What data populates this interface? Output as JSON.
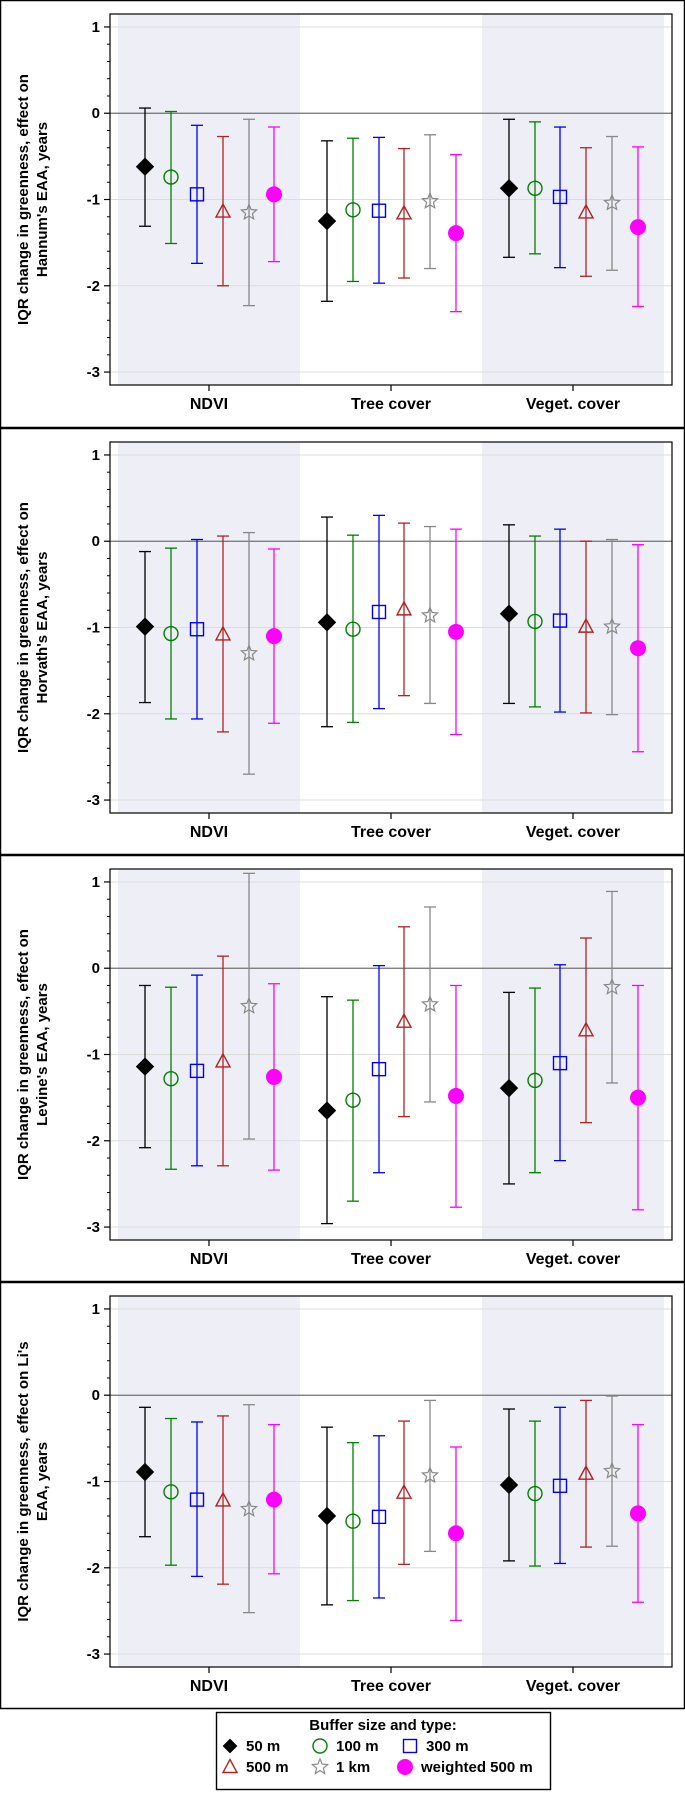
{
  "chart_data": [
    {
      "type": "errorbar",
      "title": "",
      "ylabel_lines": [
        "IQR change in greenness, effect on",
        "Hannum's EAA, years"
      ],
      "xlabel": "",
      "categories": [
        "NDVI",
        "Tree cover",
        "Veget. cover"
      ],
      "ylim": [
        -3.15,
        1.15
      ],
      "yticks": [
        1,
        0,
        -1,
        -2,
        -3
      ],
      "series": [
        {
          "name": "50 m",
          "points": [
            {
              "est": -0.62,
              "lo": -1.31,
              "hi": 0.06
            },
            {
              "est": -1.25,
              "lo": -2.18,
              "hi": -0.32
            },
            {
              "est": -0.87,
              "lo": -1.67,
              "hi": -0.07
            }
          ]
        },
        {
          "name": "100 m",
          "points": [
            {
              "est": -0.74,
              "lo": -1.51,
              "hi": 0.02
            },
            {
              "est": -1.12,
              "lo": -1.95,
              "hi": -0.29
            },
            {
              "est": -0.87,
              "lo": -1.63,
              "hi": -0.1
            }
          ]
        },
        {
          "name": "300 m",
          "points": [
            {
              "est": -0.94,
              "lo": -1.74,
              "hi": -0.14
            },
            {
              "est": -1.13,
              "lo": -1.97,
              "hi": -0.28
            },
            {
              "est": -0.97,
              "lo": -1.79,
              "hi": -0.16
            }
          ]
        },
        {
          "name": "500 m",
          "points": [
            {
              "est": -1.14,
              "lo": -2.0,
              "hi": -0.27
            },
            {
              "est": -1.16,
              "lo": -1.91,
              "hi": -0.41
            },
            {
              "est": -1.15,
              "lo": -1.89,
              "hi": -0.4
            }
          ]
        },
        {
          "name": "1 km",
          "points": [
            {
              "est": -1.15,
              "lo": -2.23,
              "hi": -0.07
            },
            {
              "est": -1.02,
              "lo": -1.8,
              "hi": -0.25
            },
            {
              "est": -1.04,
              "lo": -1.82,
              "hi": -0.27
            }
          ]
        },
        {
          "name": "weighted 500 m",
          "points": [
            {
              "est": -0.94,
              "lo": -1.72,
              "hi": -0.16
            },
            {
              "est": -1.39,
              "lo": -2.3,
              "hi": -0.48
            },
            {
              "est": -1.32,
              "lo": -2.24,
              "hi": -0.39
            }
          ]
        }
      ]
    },
    {
      "type": "errorbar",
      "title": "",
      "ylabel_lines": [
        "IQR change in greenness, effect on",
        "Horvath's EAA, years"
      ],
      "xlabel": "",
      "categories": [
        "NDVI",
        "Tree cover",
        "Veget. cover"
      ],
      "ylim": [
        -3.15,
        1.15
      ],
      "yticks": [
        1,
        0,
        -1,
        -2,
        -3
      ],
      "series": [
        {
          "name": "50 m",
          "points": [
            {
              "est": -0.99,
              "lo": -1.87,
              "hi": -0.12
            },
            {
              "est": -0.94,
              "lo": -2.15,
              "hi": 0.28
            },
            {
              "est": -0.84,
              "lo": -1.88,
              "hi": 0.19
            }
          ]
        },
        {
          "name": "100 m",
          "points": [
            {
              "est": -1.07,
              "lo": -2.06,
              "hi": -0.08
            },
            {
              "est": -1.02,
              "lo": -2.1,
              "hi": 0.07
            },
            {
              "est": -0.93,
              "lo": -1.92,
              "hi": 0.06
            }
          ]
        },
        {
          "name": "300 m",
          "points": [
            {
              "est": -1.02,
              "lo": -2.06,
              "hi": 0.02
            },
            {
              "est": -0.82,
              "lo": -1.94,
              "hi": 0.3
            },
            {
              "est": -0.92,
              "lo": -1.98,
              "hi": 0.14
            }
          ]
        },
        {
          "name": "500 m",
          "points": [
            {
              "est": -1.08,
              "lo": -2.21,
              "hi": 0.06
            },
            {
              "est": -0.79,
              "lo": -1.79,
              "hi": 0.21
            },
            {
              "est": -0.99,
              "lo": -1.99,
              "hi": 0.0
            }
          ]
        },
        {
          "name": "1 km",
          "points": [
            {
              "est": -1.3,
              "lo": -2.7,
              "hi": 0.1
            },
            {
              "est": -0.86,
              "lo": -1.88,
              "hi": 0.17
            },
            {
              "est": -0.99,
              "lo": -2.01,
              "hi": 0.02
            }
          ]
        },
        {
          "name": "weighted 500 m",
          "points": [
            {
              "est": -1.1,
              "lo": -2.11,
              "hi": -0.09
            },
            {
              "est": -1.05,
              "lo": -2.24,
              "hi": 0.14
            },
            {
              "est": -1.24,
              "lo": -2.44,
              "hi": -0.04
            }
          ]
        }
      ]
    },
    {
      "type": "errorbar",
      "title": "",
      "ylabel_lines": [
        "IQR change in greenness, effect on",
        "Levine's EAA, years"
      ],
      "xlabel": "",
      "categories": [
        "NDVI",
        "Tree cover",
        "Veget. cover"
      ],
      "ylim": [
        -3.15,
        1.15
      ],
      "yticks": [
        1,
        0,
        -1,
        -2,
        -3
      ],
      "series": [
        {
          "name": "50 m",
          "points": [
            {
              "est": -1.14,
              "lo": -2.08,
              "hi": -0.2
            },
            {
              "est": -1.65,
              "lo": -2.96,
              "hi": -0.33
            },
            {
              "est": -1.39,
              "lo": -2.5,
              "hi": -0.28
            }
          ]
        },
        {
          "name": "100 m",
          "points": [
            {
              "est": -1.28,
              "lo": -2.33,
              "hi": -0.22
            },
            {
              "est": -1.53,
              "lo": -2.7,
              "hi": -0.37
            },
            {
              "est": -1.3,
              "lo": -2.37,
              "hi": -0.23
            }
          ]
        },
        {
          "name": "300 m",
          "points": [
            {
              "est": -1.19,
              "lo": -2.29,
              "hi": -0.08
            },
            {
              "est": -1.17,
              "lo": -2.37,
              "hi": 0.03
            },
            {
              "est": -1.1,
              "lo": -2.23,
              "hi": 0.04
            }
          ]
        },
        {
          "name": "500 m",
          "points": [
            {
              "est": -1.08,
              "lo": -2.29,
              "hi": 0.14
            },
            {
              "est": -0.62,
              "lo": -1.72,
              "hi": 0.48
            },
            {
              "est": -0.72,
              "lo": -1.79,
              "hi": 0.35
            }
          ]
        },
        {
          "name": "1 km",
          "points": [
            {
              "est": -0.44,
              "lo": -1.98,
              "hi": 1.1
            },
            {
              "est": -0.42,
              "lo": -1.55,
              "hi": 0.71
            },
            {
              "est": -0.22,
              "lo": -1.33,
              "hi": 0.89
            }
          ]
        },
        {
          "name": "weighted 500 m",
          "points": [
            {
              "est": -1.26,
              "lo": -2.34,
              "hi": -0.18
            },
            {
              "est": -1.48,
              "lo": -2.77,
              "hi": -0.2
            },
            {
              "est": -1.5,
              "lo": -2.8,
              "hi": -0.2
            }
          ]
        }
      ]
    },
    {
      "type": "errorbar",
      "title": "",
      "ylabel_lines": [
        "IQR change in greenness, effect on Li's",
        "EAA, years"
      ],
      "xlabel": "",
      "categories": [
        "NDVI",
        "Tree cover",
        "Veget. cover"
      ],
      "ylim": [
        -3.15,
        1.15
      ],
      "yticks": [
        1,
        0,
        -1,
        -2,
        -3
      ],
      "series": [
        {
          "name": "50 m",
          "points": [
            {
              "est": -0.89,
              "lo": -1.64,
              "hi": -0.14
            },
            {
              "est": -1.4,
              "lo": -2.43,
              "hi": -0.37
            },
            {
              "est": -1.04,
              "lo": -1.92,
              "hi": -0.16
            }
          ]
        },
        {
          "name": "100 m",
          "points": [
            {
              "est": -1.12,
              "lo": -1.97,
              "hi": -0.27
            },
            {
              "est": -1.46,
              "lo": -2.38,
              "hi": -0.55
            },
            {
              "est": -1.14,
              "lo": -1.98,
              "hi": -0.3
            }
          ]
        },
        {
          "name": "300 m",
          "points": [
            {
              "est": -1.21,
              "lo": -2.1,
              "hi": -0.31
            },
            {
              "est": -1.41,
              "lo": -2.35,
              "hi": -0.47
            },
            {
              "est": -1.05,
              "lo": -1.95,
              "hi": -0.14
            }
          ]
        },
        {
          "name": "500 m",
          "points": [
            {
              "est": -1.22,
              "lo": -2.19,
              "hi": -0.24
            },
            {
              "est": -1.13,
              "lo": -1.96,
              "hi": -0.3
            },
            {
              "est": -0.91,
              "lo": -1.76,
              "hi": -0.06
            }
          ]
        },
        {
          "name": "1 km",
          "points": [
            {
              "est": -1.32,
              "lo": -2.52,
              "hi": -0.11
            },
            {
              "est": -0.93,
              "lo": -1.81,
              "hi": -0.06
            },
            {
              "est": -0.88,
              "lo": -1.75,
              "hi": -0.01
            }
          ]
        },
        {
          "name": "weighted 500 m",
          "points": [
            {
              "est": -1.21,
              "lo": -2.07,
              "hi": -0.34
            },
            {
              "est": -1.6,
              "lo": -2.61,
              "hi": -0.6
            },
            {
              "est": -1.37,
              "lo": -2.4,
              "hi": -0.34
            }
          ]
        }
      ]
    }
  ],
  "legend": {
    "title": "Buffer size and type:",
    "items": [
      "50 m",
      "100 m",
      "300 m",
      "500 m",
      "1 km",
      "weighted 500 m"
    ]
  },
  "styles": {
    "colors": {
      "50 m": "#000000",
      "100 m": "#008000",
      "300 m": "#0000ee",
      "500 m": "#b22222",
      "1 km": "#888888",
      "weighted 500 m": "#ff00ff"
    },
    "markers": {
      "50 m": "diamond-filled-icon",
      "100 m": "circle-open-icon",
      "300 m": "square-open-icon",
      "500 m": "triangle-open-icon",
      "1 km": "star-open-icon",
      "weighted 500 m": "circle-filled-icon"
    },
    "band_color": "#eeeff6",
    "gridline_color": "#dcdcdc",
    "zero_line_color": "#707070"
  }
}
